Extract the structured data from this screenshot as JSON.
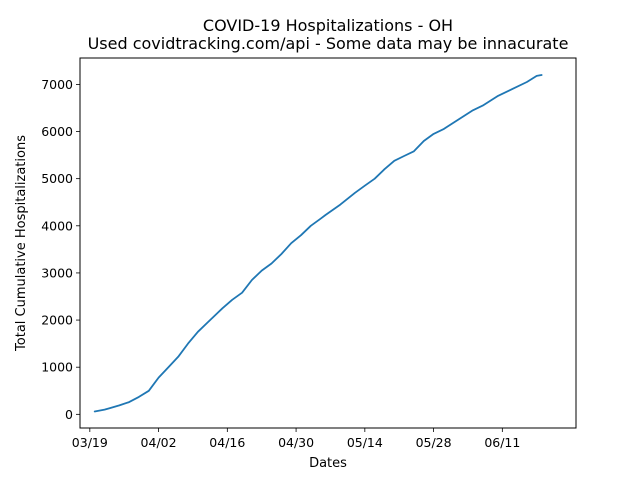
{
  "chart_data": {
    "type": "line",
    "title": "COVID-19 Hospitalizations - OH",
    "subtitle": "Used covidtracking.com/api - Some data may be innacurate",
    "xlabel": "Dates",
    "ylabel": "Total Cumulative Hospitalizations",
    "x_type": "date",
    "xlim": [
      "2020-03-17",
      "2020-06-26"
    ],
    "ylim": [
      -290,
      7560
    ],
    "x_ticks": [
      {
        "date": "2020-03-19",
        "label": "03/19"
      },
      {
        "date": "2020-04-02",
        "label": "04/02"
      },
      {
        "date": "2020-04-16",
        "label": "04/16"
      },
      {
        "date": "2020-04-30",
        "label": "04/30"
      },
      {
        "date": "2020-05-14",
        "label": "05/14"
      },
      {
        "date": "2020-05-28",
        "label": "05/28"
      },
      {
        "date": "2020-06-11",
        "label": "06/11"
      }
    ],
    "y_ticks": [
      0,
      1000,
      2000,
      3000,
      4000,
      5000,
      6000,
      7000
    ],
    "grid": false,
    "line_color": "#1f77b4",
    "series": [
      {
        "x": [
          "2020-03-20",
          "2020-03-22",
          "2020-03-23",
          "2020-03-25",
          "2020-03-27",
          "2020-03-29",
          "2020-03-31",
          "2020-04-02",
          "2020-04-04",
          "2020-04-06",
          "2020-04-08",
          "2020-04-10",
          "2020-04-12",
          "2020-04-14",
          "2020-04-15",
          "2020-04-17",
          "2020-04-19",
          "2020-04-21",
          "2020-04-23",
          "2020-04-25",
          "2020-04-27",
          "2020-04-29",
          "2020-05-01",
          "2020-05-03",
          "2020-05-05",
          "2020-05-06",
          "2020-05-09",
          "2020-05-12",
          "2020-05-14",
          "2020-05-16",
          "2020-05-18",
          "2020-05-20",
          "2020-05-22",
          "2020-05-24",
          "2020-05-26",
          "2020-05-28",
          "2020-05-30",
          "2020-06-02",
          "2020-06-05",
          "2020-06-07",
          "2020-06-10",
          "2020-06-13",
          "2020-06-16",
          "2020-06-18",
          "2020-06-19"
        ],
        "y": [
          60,
          100,
          130,
          190,
          260,
          370,
          500,
          780,
          1000,
          1220,
          1500,
          1750,
          1950,
          2150,
          2250,
          2430,
          2580,
          2850,
          3050,
          3200,
          3400,
          3630,
          3800,
          4000,
          4150,
          4230,
          4450,
          4700,
          4850,
          5000,
          5200,
          5380,
          5480,
          5580,
          5800,
          5950,
          6050,
          6250,
          6450,
          6550,
          6750,
          6900,
          7050,
          7180,
          7200
        ]
      }
    ]
  }
}
